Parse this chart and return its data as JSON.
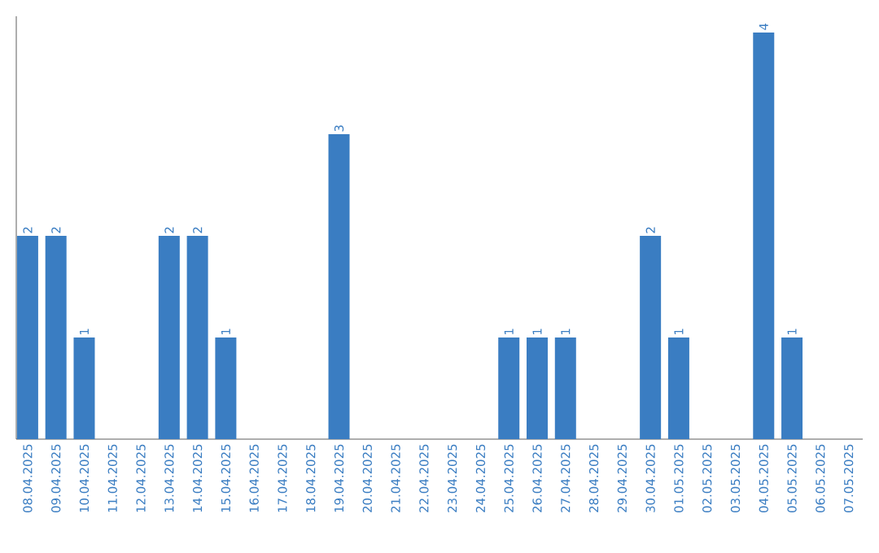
{
  "chart_data": {
    "type": "bar",
    "categories": [
      "08.04.2025",
      "09.04.2025",
      "10.04.2025",
      "11.04.2025",
      "12.04.2025",
      "13.04.2025",
      "14.04.2025",
      "15.04.2025",
      "16.04.2025",
      "17.04.2025",
      "18.04.2025",
      "19.04.2025",
      "20.04.2025",
      "21.04.2025",
      "22.04.2025",
      "23.04.2025",
      "24.04.2025",
      "25.04.2025",
      "26.04.2025",
      "27.04.2025",
      "28.04.2025",
      "29.04.2025",
      "30.04.2025",
      "01.05.2025",
      "02.05.2025",
      "03.05.2025",
      "04.05.2025",
      "05.05.2025",
      "06.05.2025",
      "07.05.2025"
    ],
    "values": [
      2,
      2,
      1,
      0,
      0,
      2,
      2,
      1,
      0,
      0,
      0,
      3,
      0,
      0,
      0,
      0,
      0,
      1,
      1,
      1,
      0,
      0,
      2,
      1,
      0,
      0,
      4,
      1,
      0,
      0
    ],
    "value_labels": [
      "2",
      "2",
      "1",
      null,
      null,
      "2",
      "2",
      "1",
      null,
      null,
      null,
      "3",
      null,
      null,
      null,
      null,
      null,
      "1",
      "1",
      "1",
      null,
      null,
      "2",
      "1",
      null,
      null,
      "4",
      "1",
      null,
      null
    ],
    "color": "#3a7dc2"
  }
}
